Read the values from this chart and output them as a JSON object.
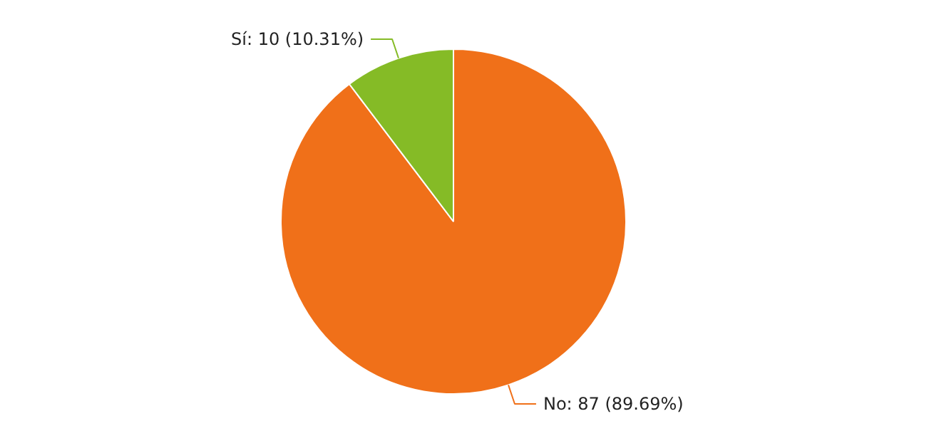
{
  "chart_data": {
    "type": "pie",
    "categories": [
      "No",
      "Sí"
    ],
    "values": [
      87,
      10
    ],
    "colors": [
      "#f07019",
      "#85bb26"
    ],
    "value_labels": [
      ": 87 (89.69%)",
      ": 10 (10.31%)"
    ]
  }
}
